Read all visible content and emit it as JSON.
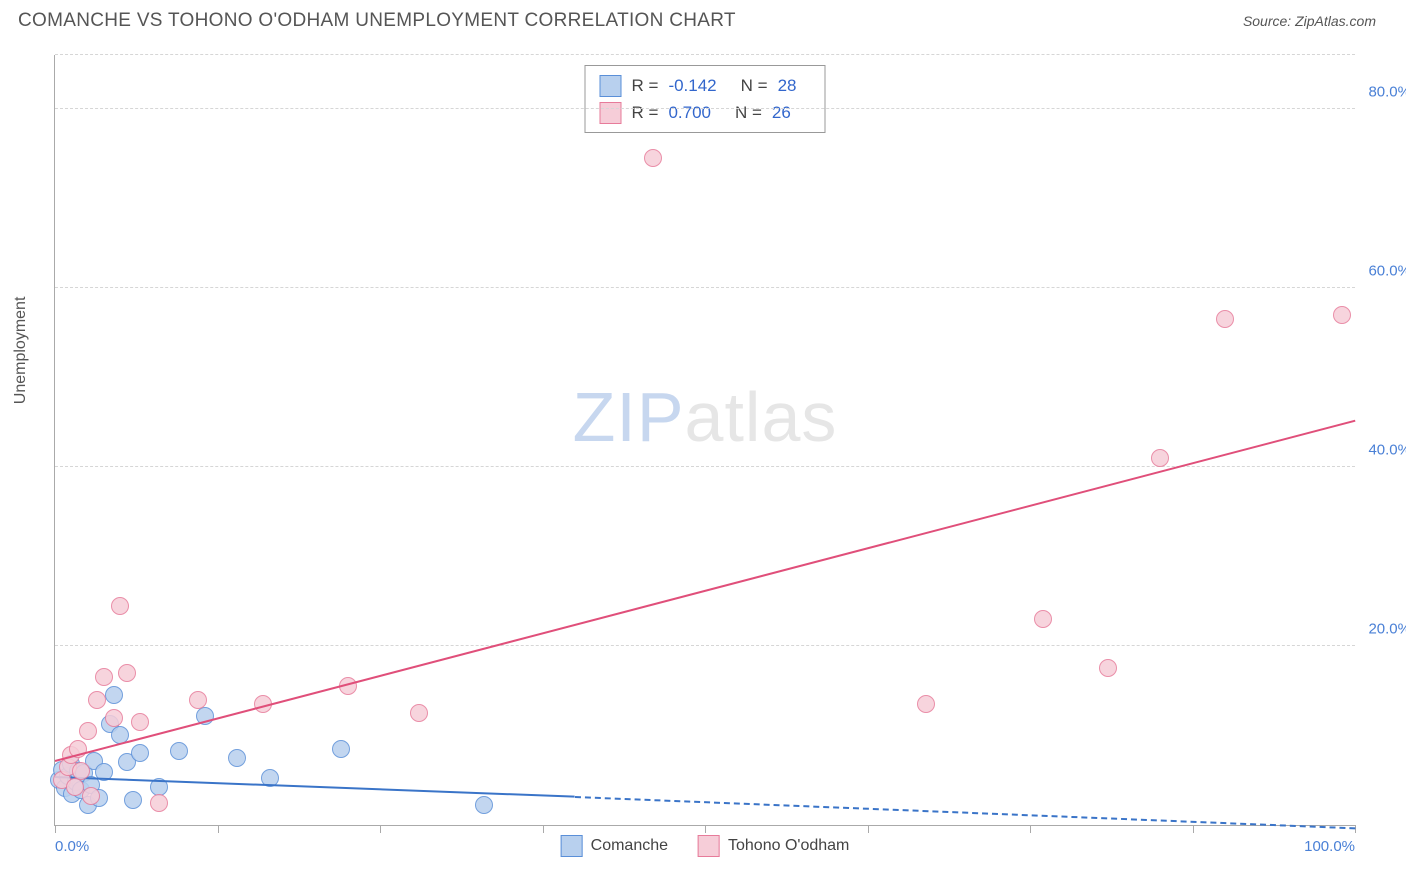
{
  "title": "COMANCHE VS TOHONO O'ODHAM UNEMPLOYMENT CORRELATION CHART",
  "source_prefix": "Source: ",
  "source_name": "ZipAtlas.com",
  "ylabel": "Unemployment",
  "watermark_a": "ZIP",
  "watermark_b": "atlas",
  "chart": {
    "type": "scatter",
    "xlim": [
      0,
      100
    ],
    "ylim": [
      0,
      86
    ],
    "x_ticks": [
      0,
      12.5,
      25,
      37.5,
      50,
      62.5,
      75,
      87.5,
      100
    ],
    "x_tick_labels": {
      "0": "0.0%",
      "100": "100.0%"
    },
    "y_gridlines": [
      20,
      40,
      60,
      80,
      86
    ],
    "y_tick_labels": {
      "20": "20.0%",
      "40": "40.0%",
      "60": "60.0%",
      "80": "80.0%"
    },
    "background": "#ffffff",
    "grid_color": "#d6d6d6",
    "axis_color": "#aaaaaa",
    "tick_label_color": "#4a80d6",
    "point_radius": 9,
    "point_border_width": 1.5,
    "series": [
      {
        "name": "Comanche",
        "fill": "#b8d0ee",
        "stroke": "#5a8fd8",
        "line_color": "#3a74c8",
        "R": "-0.142",
        "N": "28",
        "trend": {
          "x0": 0,
          "y0": 5.2,
          "x1": 40,
          "y1": 3.0,
          "dash_to_x": 100,
          "dash_to_y": -0.5
        },
        "points": [
          [
            0.3,
            5.0
          ],
          [
            0.5,
            6.2
          ],
          [
            0.8,
            4.1
          ],
          [
            1.0,
            5.5
          ],
          [
            1.2,
            6.8
          ],
          [
            1.3,
            3.5
          ],
          [
            1.6,
            4.8
          ],
          [
            1.8,
            6.0
          ],
          [
            2.0,
            3.9
          ],
          [
            2.2,
            5.8
          ],
          [
            2.5,
            2.2
          ],
          [
            2.8,
            4.5
          ],
          [
            3.0,
            7.2
          ],
          [
            3.4,
            3.0
          ],
          [
            3.8,
            5.9
          ],
          [
            4.2,
            11.3
          ],
          [
            4.5,
            14.5
          ],
          [
            5.0,
            10.0
          ],
          [
            5.5,
            7.0
          ],
          [
            6.0,
            2.8
          ],
          [
            6.5,
            8.0
          ],
          [
            8.0,
            4.2
          ],
          [
            9.5,
            8.3
          ],
          [
            11.5,
            12.2
          ],
          [
            14.0,
            7.5
          ],
          [
            16.5,
            5.2
          ],
          [
            22.0,
            8.5
          ],
          [
            33.0,
            2.2
          ]
        ]
      },
      {
        "name": "Tohono O'odham",
        "fill": "#f6cdd8",
        "stroke": "#e77b9a",
        "line_color": "#e04f7a",
        "R": "0.700",
        "N": "26",
        "trend": {
          "x0": 0,
          "y0": 7.0,
          "x1": 100,
          "y1": 45.0
        },
        "points": [
          [
            0.5,
            5.0
          ],
          [
            1.0,
            6.5
          ],
          [
            1.2,
            7.8
          ],
          [
            1.5,
            4.2
          ],
          [
            1.8,
            8.5
          ],
          [
            2.0,
            6.0
          ],
          [
            2.5,
            10.5
          ],
          [
            2.8,
            3.2
          ],
          [
            3.2,
            14.0
          ],
          [
            3.8,
            16.5
          ],
          [
            4.5,
            12.0
          ],
          [
            5.0,
            24.5
          ],
          [
            5.5,
            17.0
          ],
          [
            6.5,
            11.5
          ],
          [
            8.0,
            2.5
          ],
          [
            11.0,
            14.0
          ],
          [
            16.0,
            13.5
          ],
          [
            22.5,
            15.5
          ],
          [
            28.0,
            12.5
          ],
          [
            46.0,
            74.5
          ],
          [
            67.0,
            13.5
          ],
          [
            76.0,
            23.0
          ],
          [
            81.0,
            17.5
          ],
          [
            85.0,
            41.0
          ],
          [
            90.0,
            56.5
          ],
          [
            99.0,
            57.0
          ]
        ]
      }
    ]
  },
  "legend": [
    {
      "label": "Comanche",
      "fill": "#b8d0ee",
      "stroke": "#5a8fd8"
    },
    {
      "label": "Tohono O'odham",
      "fill": "#f6cdd8",
      "stroke": "#e77b9a"
    }
  ]
}
